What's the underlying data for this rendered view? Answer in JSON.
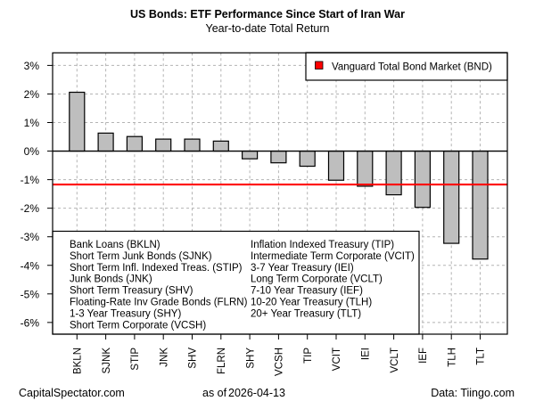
{
  "chart_data": {
    "type": "bar",
    "title": "US Bonds: ETF Performance Since Start of Iran War",
    "subtitle": "Year-to-date Total Return",
    "xlabel": "",
    "ylabel": "",
    "ylim": [
      -6.41,
      3.44
    ],
    "yticks": [
      3,
      2,
      1,
      0,
      -1,
      -2,
      -3,
      -4,
      -5,
      -6
    ],
    "ytick_labels": [
      "3%",
      "2%",
      "1%",
      "0%",
      "-1%",
      "-2%",
      "-3%",
      "-4%",
      "-5%",
      "-6%"
    ],
    "grid": true,
    "categories": [
      "BKLN",
      "SJNK",
      "STIP",
      "JNK",
      "SHV",
      "FLRN",
      "SHY",
      "VCSH",
      "TIP",
      "VCIT",
      "IEI",
      "VCLT",
      "IEF",
      "TLH",
      "TLT"
    ],
    "values": [
      2.06,
      0.63,
      0.51,
      0.42,
      0.42,
      0.35,
      -0.27,
      -0.41,
      -0.53,
      -1.02,
      -1.23,
      -1.53,
      -1.97,
      -3.23,
      -3.78
    ],
    "bar_color": "#bebebe",
    "reference_line": {
      "name": "Vanguard Total Bond Market (BND)",
      "value": -1.17,
      "color": "#ff0000"
    },
    "legend": {
      "placement": "top-right",
      "entries": [
        "Vanguard Total Bond Market (BND)"
      ]
    },
    "annotation_box": {
      "placement": "bottom-left",
      "column1": [
        "Bank Loans (BKLN)",
        "Short Term Junk Bonds (SJNK)",
        "Short Term Infl. Indexed Treas. (STIP)",
        "Junk Bonds (JNK)",
        "Short Term Treasury (SHV)",
        "Floating-Rate Inv Grade Bonds (FLRN)",
        "1-3 Year Treasury (SHY)",
        "Short Term Corporate (VCSH)"
      ],
      "column2": [
        "Inflation Indexed Treasury (TIP)",
        "Intermediate Term Corporate (VCIT)",
        "3-7 Year Treasury (IEI)",
        "Long Term Corporate (VCLT)",
        "7-10 Year Treasury (IEF)",
        "10-20 Year Treasury (TLH)",
        "20+ Year Treasury (TLT)"
      ]
    }
  },
  "footer": {
    "source_left": "CapitalSpectator.com",
    "as_of_label": "as of",
    "as_of_date": "2026-04-13",
    "source_right": "Data: Tiingo.com"
  }
}
